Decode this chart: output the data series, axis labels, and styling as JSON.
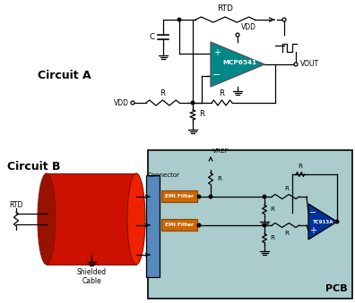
{
  "bg_color": "#ffffff",
  "circuit_a_label": "Circuit A",
  "circuit_b_label": "Circuit B",
  "opamp_color": "#008888",
  "opamp_label": "MCP6541",
  "opamp_b_color": "#003399",
  "opamp_b_label": "TC913A",
  "emi_color": "#cc6600",
  "pcb_bg": "#aacccc",
  "connector_color": "#5588bb",
  "cable_color": "#cc2200",
  "emi_label": "EMI Filter",
  "pcb_label": "PCB",
  "vdd_label": "VDD",
  "vout_label": "VOUT",
  "vref_label": "VREF",
  "rtd_label_a": "RTD",
  "rtd_label_b": "RTD",
  "r_label": "R",
  "c_label": "C",
  "connector_label": "Connector",
  "shielded_label": "Shielded\nCable"
}
